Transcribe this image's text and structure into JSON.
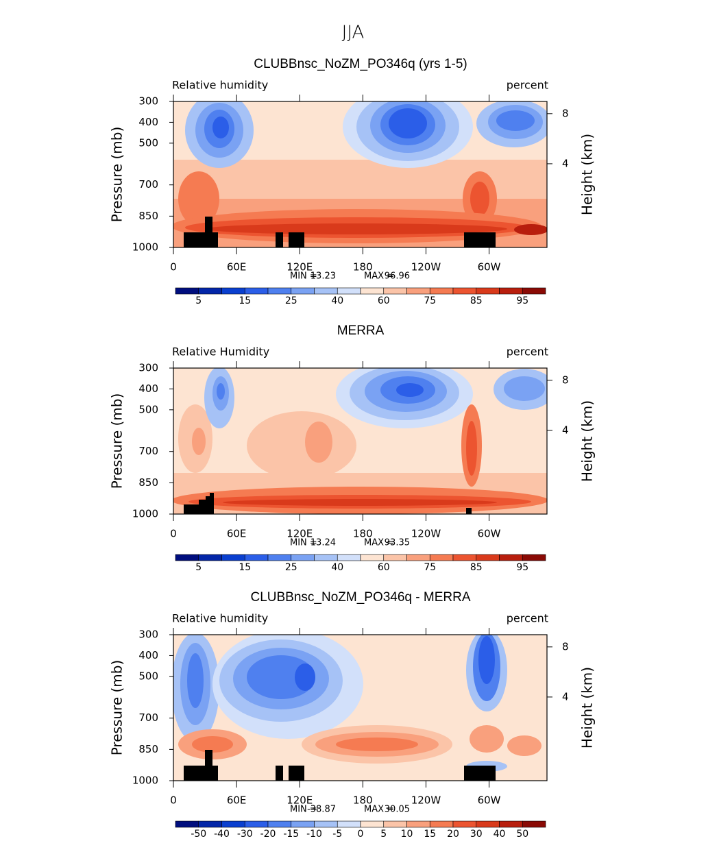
{
  "title": "JJA",
  "chart_data": [
    {
      "type": "contour",
      "title": "CLUBBnsc_NoZM_PO346q (yrs 1-5)",
      "left_label": "Relative humidity",
      "right_label": "percent",
      "ylabel": "Pressure (mb)",
      "y2label": "Height (km)",
      "xlim": [
        0,
        355
      ],
      "xticks": [
        0,
        {
          "value": 60,
          "label": "60E"
        },
        {
          "value": 120,
          "label": "120E"
        },
        180,
        {
          "value": 240,
          "label": "120W"
        },
        {
          "value": 300,
          "label": "60W"
        }
      ],
      "ylim": [
        1000,
        300
      ],
      "yticks": [
        300,
        400,
        500,
        700,
        850,
        1000
      ],
      "y2ticks": [
        8,
        4
      ],
      "min_label": "MIN =",
      "min": 13.23,
      "max_label": "MAX =",
      "max": 96.96,
      "colorbar": {
        "colors": [
          "#000e7e",
          "#0326a8",
          "#0a3fcf",
          "#2b5ee8",
          "#4f80ef",
          "#7aa2f3",
          "#a6c2f6",
          "#d2e0fa",
          "#fde4d2",
          "#fbc4a8",
          "#f9a07d",
          "#f57b52",
          "#ec5430",
          "#d93a1b",
          "#b81e0d",
          "#8a0a05"
        ],
        "labels": [
          5,
          15,
          25,
          40,
          60,
          75,
          85,
          95
        ]
      }
    },
    {
      "type": "contour",
      "title": "MERRA",
      "left_label": "Relative Humidity",
      "right_label": "percent",
      "ylabel": "Pressure (mb)",
      "y2label": "Height (km)",
      "xlim": [
        0,
        355
      ],
      "xticks": [
        0,
        {
          "value": 60,
          "label": "60E"
        },
        {
          "value": 120,
          "label": "120E"
        },
        180,
        {
          "value": 240,
          "label": "120W"
        },
        {
          "value": 300,
          "label": "60W"
        }
      ],
      "ylim": [
        1000,
        300
      ],
      "yticks": [
        300,
        400,
        500,
        700,
        850,
        1000
      ],
      "y2ticks": [
        8,
        4
      ],
      "min_label": "MIN =",
      "min": 13.24,
      "max_label": "MAX =",
      "max": 93.35,
      "colorbar": {
        "colors": [
          "#000e7e",
          "#0326a8",
          "#0a3fcf",
          "#2b5ee8",
          "#4f80ef",
          "#7aa2f3",
          "#a6c2f6",
          "#d2e0fa",
          "#fde4d2",
          "#fbc4a8",
          "#f9a07d",
          "#f57b52",
          "#ec5430",
          "#d93a1b",
          "#b81e0d",
          "#8a0a05"
        ],
        "labels": [
          5,
          15,
          25,
          40,
          60,
          75,
          85,
          95
        ]
      }
    },
    {
      "type": "contour",
      "title": "CLUBBnsc_NoZM_PO346q - MERRA",
      "left_label": "Relative humidity",
      "right_label": "percent",
      "ylabel": "Pressure (mb)",
      "y2label": "Height (km)",
      "xlim": [
        0,
        355
      ],
      "xticks": [
        0,
        {
          "value": 60,
          "label": "60E"
        },
        {
          "value": 120,
          "label": "120E"
        },
        180,
        {
          "value": 240,
          "label": "120W"
        },
        {
          "value": 300,
          "label": "60W"
        }
      ],
      "ylim": [
        1000,
        300
      ],
      "yticks": [
        300,
        400,
        500,
        700,
        850,
        1000
      ],
      "y2ticks": [
        8,
        4
      ],
      "min_label": "MIN =",
      "min": -38.87,
      "max_label": "MAX =",
      "max": 30.05,
      "colorbar": {
        "colors": [
          "#000e7e",
          "#0326a8",
          "#0a3fcf",
          "#2b5ee8",
          "#4f80ef",
          "#7aa2f3",
          "#a6c2f6",
          "#d2e0fa",
          "#fde4d2",
          "#fbc4a8",
          "#f9a07d",
          "#f57b52",
          "#ec5430",
          "#d93a1b",
          "#b81e0d",
          "#8a0a05"
        ],
        "labels": [
          -50,
          -40,
          -30,
          -20,
          -15,
          -10,
          -5,
          0,
          5,
          10,
          15,
          20,
          30,
          40,
          50
        ]
      }
    }
  ]
}
